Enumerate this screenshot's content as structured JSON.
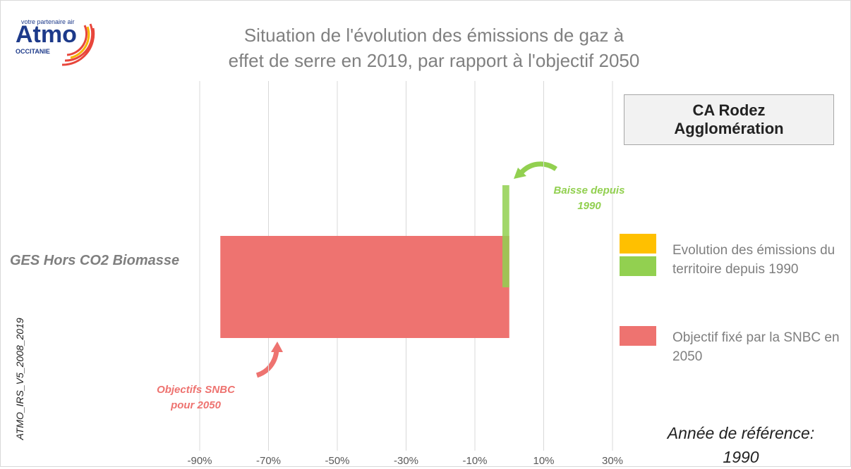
{
  "logo": {
    "tagline": "votre partenaire air",
    "name": "Atmo",
    "region": "OCCITANIE"
  },
  "side_label": "ATMO_IRS_V5_2008_2019",
  "territory": "CA Rodez Agglomération",
  "reference_note": "Année de référence: 1990",
  "chart_data": {
    "type": "bar",
    "orientation": "horizontal",
    "title": "Situation de l'évolution des émissions de gaz à effet de serre en 2019, par rapport à l'objectif 2050",
    "categories": [
      "GES Hors CO2 Biomasse"
    ],
    "series": [
      {
        "name": "Evolution des émissions du territoire depuis 1990",
        "color": "#92d050",
        "legend_colors": [
          "#ffc000",
          "#92d050"
        ],
        "values": [
          -2
        ]
      },
      {
        "name": "Objectif fixé par la SNBC en 2050",
        "color": "#ee7370",
        "values": [
          -84
        ]
      }
    ],
    "xlim": [
      -90,
      30
    ],
    "xticks": [
      {
        "value": -90,
        "label": "-90%"
      },
      {
        "value": -70,
        "label": "-70%"
      },
      {
        "value": -50,
        "label": "-50%"
      },
      {
        "value": -30,
        "label": "-30%"
      },
      {
        "value": -10,
        "label": "-10%"
      },
      {
        "value": 10,
        "label": "10%"
      },
      {
        "value": 30,
        "label": "30%"
      }
    ],
    "grid": true,
    "annotations": [
      "Baisse depuis 1990",
      "Objectifs SNBC pour 2050"
    ]
  }
}
